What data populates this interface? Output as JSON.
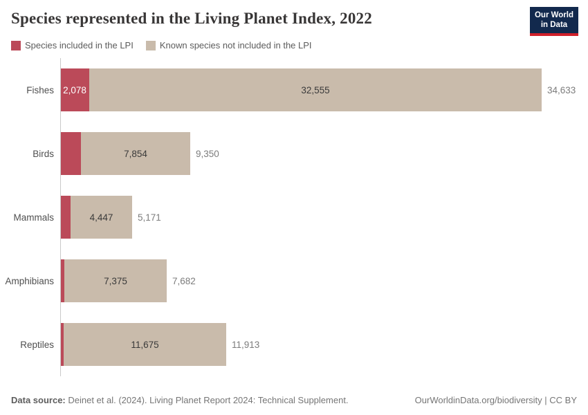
{
  "header": {
    "title": "Species represented in the Living Planet Index, 2022",
    "logo": {
      "line1": "Our World",
      "line2": "in Data"
    }
  },
  "legend": [
    {
      "label": "Species included in the LPI",
      "color": "#bb4a59"
    },
    {
      "label": "Known species not included in the LPI",
      "color": "#c9bbab"
    }
  ],
  "chart_data": {
    "type": "bar",
    "orientation": "horizontal-stacked",
    "title": "Species represented in the Living Planet Index, 2022",
    "categories": [
      "Fishes",
      "Birds",
      "Mammals",
      "Amphibians",
      "Reptiles"
    ],
    "series": [
      {
        "name": "Species included in the LPI",
        "color": "#bb4a59",
        "values": [
          2078,
          1496,
          724,
          307,
          238
        ],
        "labels": [
          "2,078",
          "",
          "",
          "",
          ""
        ]
      },
      {
        "name": "Known species not included in the LPI",
        "color": "#c9bbab",
        "values": [
          32555,
          7854,
          4447,
          7375,
          11675
        ],
        "labels": [
          "32,555",
          "7,854",
          "4,447",
          "7,375",
          "11,675"
        ]
      }
    ],
    "totals": [
      34633,
      9350,
      5171,
      7682,
      11913
    ],
    "total_labels": [
      "34,633",
      "9,350",
      "5,171",
      "7,682",
      "11,913"
    ],
    "xmax": 34633,
    "legend_position": "top",
    "grid": false
  },
  "footer": {
    "source_label": "Data source:",
    "source_text": " Deinet et al. (2024). Living Planet Report 2024: Technical Supplement.",
    "right_text": "OurWorldinData.org/biodiversity | CC BY"
  }
}
